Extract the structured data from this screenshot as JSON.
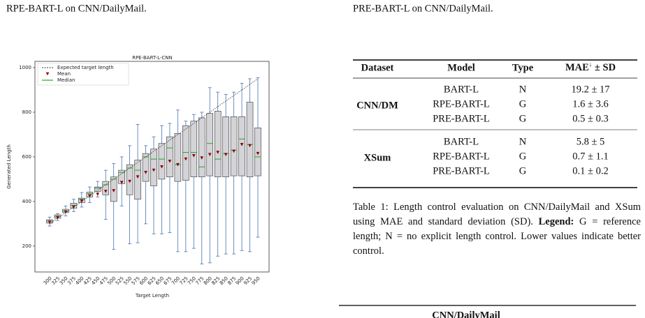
{
  "top_left_text": "RPE-BART-L on CNN/DailyMail.",
  "top_right_text": "PRE-BART-L on CNN/DailyMail.",
  "chart_data": {
    "type": "box",
    "title": "RPE-BART-L-CNN",
    "x_label": "Target Length",
    "y_label": "Generated Length",
    "categories": [
      300,
      325,
      350,
      375,
      400,
      425,
      450,
      475,
      500,
      525,
      550,
      575,
      600,
      625,
      650,
      675,
      700,
      725,
      750,
      775,
      800,
      825,
      850,
      875,
      900,
      925,
      950
    ],
    "whisker_low": [
      290,
      315,
      335,
      355,
      375,
      395,
      420,
      320,
      185,
      380,
      210,
      215,
      300,
      255,
      255,
      260,
      175,
      175,
      190,
      120,
      125,
      155,
      165,
      165,
      180,
      175,
      240
    ],
    "q1": [
      303,
      325,
      350,
      370,
      395,
      420,
      445,
      430,
      400,
      480,
      430,
      410,
      490,
      470,
      500,
      510,
      490,
      495,
      510,
      510,
      515,
      510,
      510,
      515,
      515,
      510,
      515
    ],
    "median": [
      312,
      333,
      357,
      383,
      410,
      435,
      460,
      475,
      500,
      530,
      550,
      540,
      600,
      590,
      590,
      640,
      565,
      620,
      620,
      555,
      660,
      590,
      615,
      630,
      680,
      655,
      600
    ],
    "q3": [
      318,
      340,
      365,
      392,
      415,
      442,
      465,
      490,
      510,
      540,
      565,
      585,
      615,
      635,
      660,
      690,
      705,
      740,
      760,
      775,
      795,
      805,
      780,
      780,
      780,
      845,
      730
    ],
    "whisker_high": [
      330,
      345,
      380,
      410,
      440,
      465,
      490,
      540,
      570,
      600,
      650,
      745,
      650,
      690,
      740,
      750,
      810,
      760,
      790,
      800,
      910,
      890,
      880,
      890,
      930,
      950,
      955
    ],
    "mean": [
      307,
      328,
      353,
      375,
      402,
      425,
      432,
      445,
      448,
      485,
      490,
      510,
      530,
      540,
      555,
      580,
      565,
      590,
      605,
      595,
      610,
      620,
      610,
      625,
      655,
      650,
      615
    ],
    "expected": {
      "name": "Expected target length",
      "values": [
        300,
        325,
        350,
        375,
        400,
        425,
        450,
        475,
        500,
        525,
        550,
        575,
        600,
        625,
        650,
        675,
        700,
        725,
        750,
        775,
        800,
        825,
        850,
        875,
        900,
        925,
        950
      ],
      "color": "#333333"
    },
    "mean_style": {
      "name": "Mean",
      "color": "#8b0000"
    },
    "median_style": {
      "name": "Median",
      "color": "#2ca02c"
    },
    "box_color": "#d3d3d8",
    "edge_color": "#4a72b0",
    "legend": "upper left",
    "ylim": [
      84,
      1028
    ],
    "yticks": [
      200,
      400,
      600,
      800,
      1000
    ]
  },
  "table": {
    "header": [
      "Dataset",
      "Model",
      "Type",
      {
        "text": "MAE",
        "sup": "↓",
        "rest": " ± SD"
      }
    ],
    "groups": [
      {
        "dataset": "CNN/DM",
        "rows": [
          [
            "BART-L",
            "N",
            "19.2 ± 17"
          ],
          [
            "RPE-BART-L",
            "G",
            "1.6 ± 3.6"
          ],
          [
            "PRE-BART-L",
            "G",
            "0.5 ± 0.3"
          ]
        ]
      },
      {
        "dataset": "XSum",
        "rows": [
          [
            "BART-L",
            "N",
            "5.8 ± 5"
          ],
          [
            "RPE-BART-L",
            "G",
            "0.7 ± 1.1"
          ],
          [
            "PRE-BART-L",
            "G",
            "0.1 ± 0.2"
          ]
        ]
      }
    ]
  },
  "caption": {
    "text1": "Table 1: Length control evaluation on CNN/DailyMail and XSum using MAE and standard deviation (SD).",
    "legend_label": "Legend:",
    "text2": "G = reference length; N = no explicit length control. Lower values indicate better control."
  },
  "next_table_header": "CNN/DailyMail"
}
